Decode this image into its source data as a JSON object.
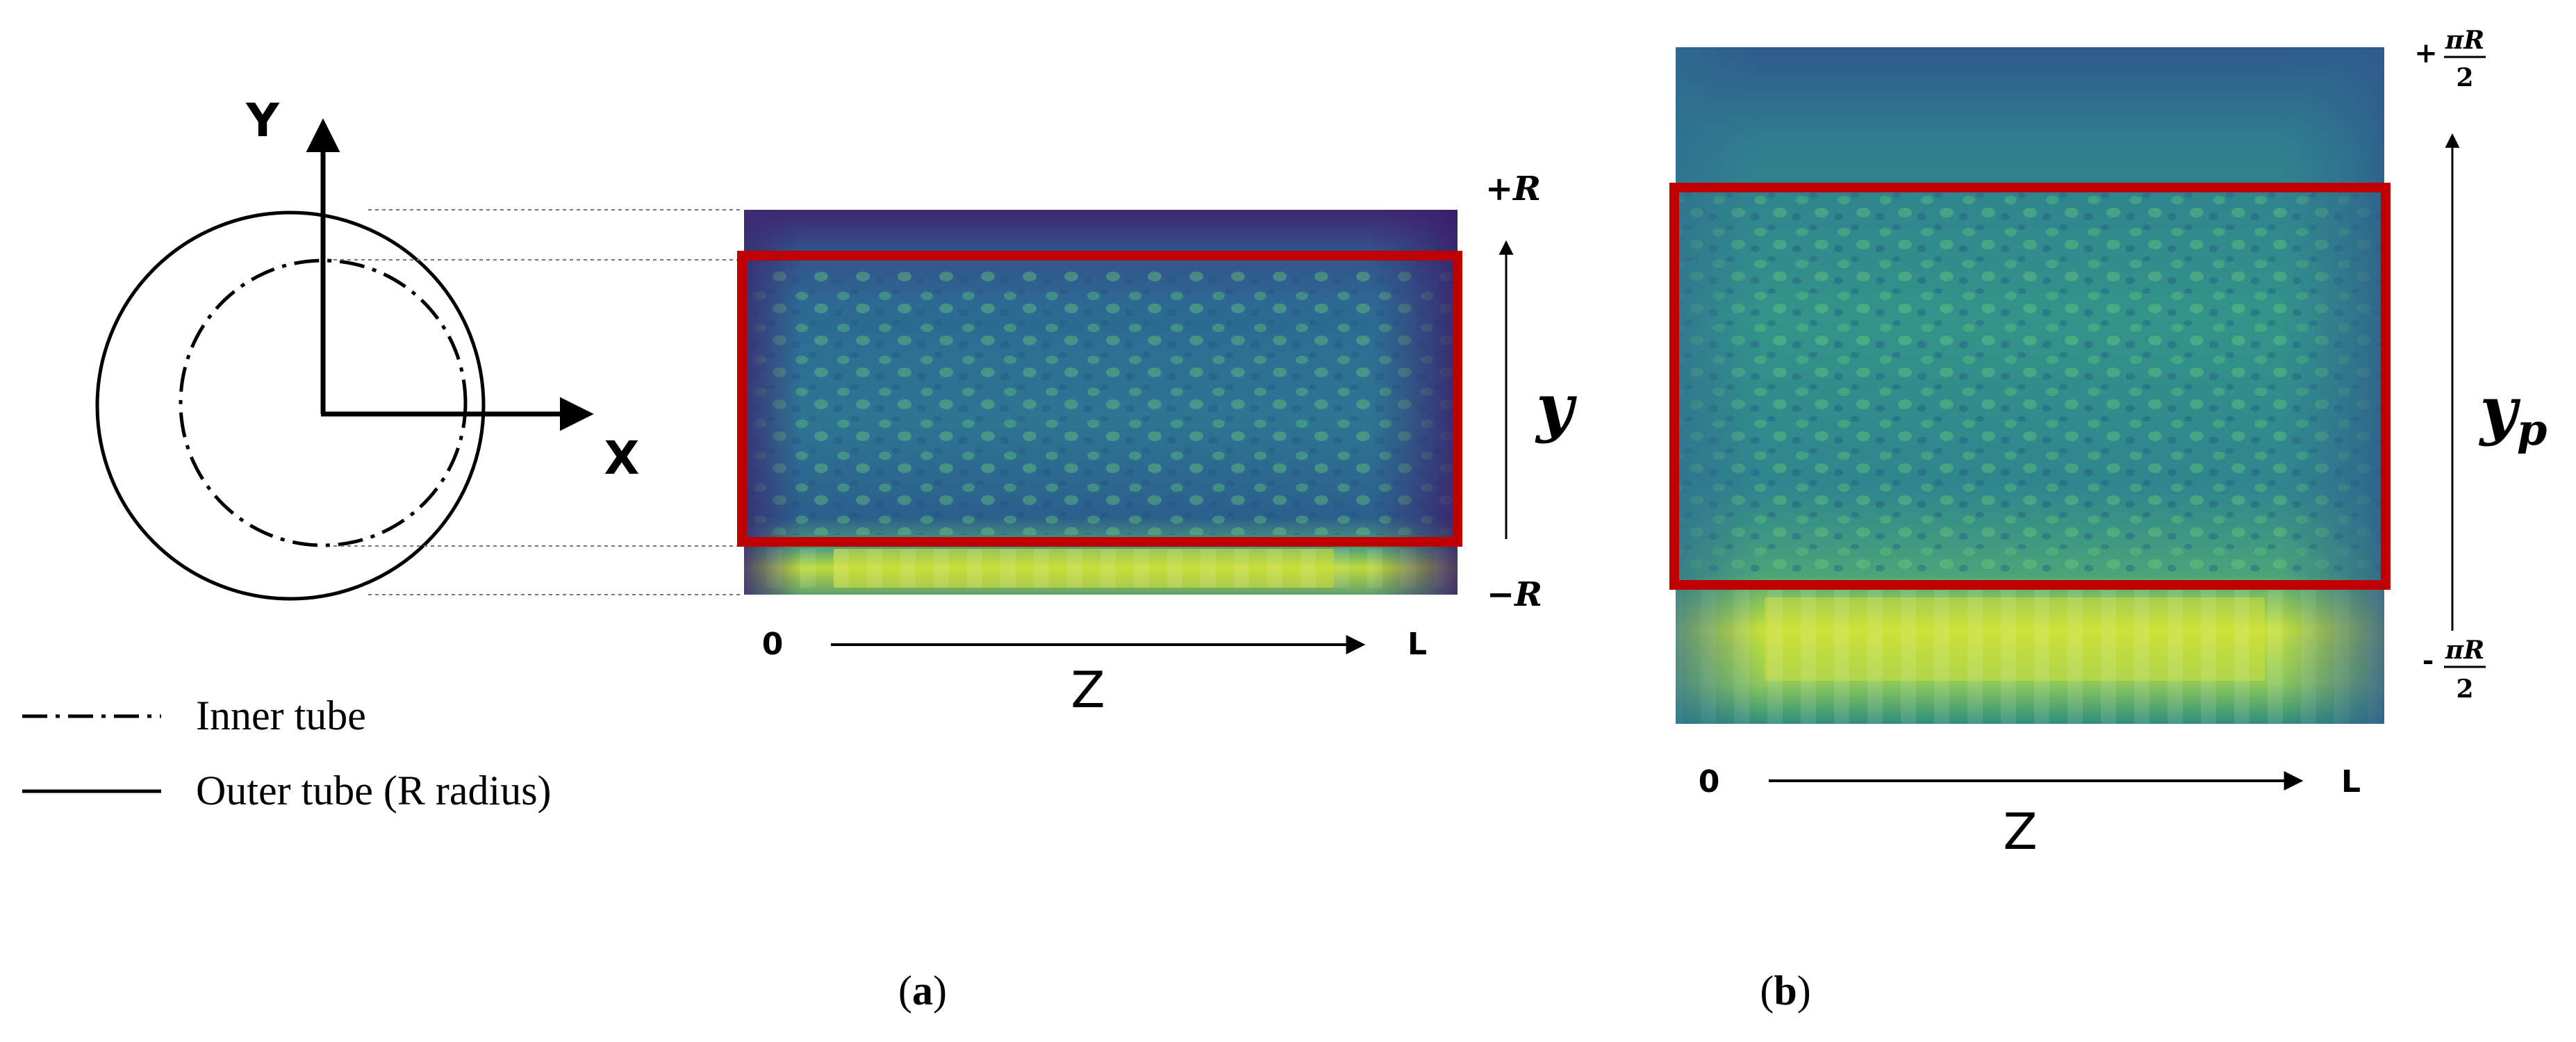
{
  "cross_section": {
    "y_axis_label": "Y",
    "x_axis_label": "X"
  },
  "legend": {
    "inner_label": "Inner tube",
    "outer_label": "Outer tube (R radius)"
  },
  "panel_a": {
    "top_label": "+R",
    "bottom_label": "−R",
    "side_label": "y",
    "axis_start": "0",
    "axis_end": "L",
    "axis_label": "Z",
    "caption_open": "(",
    "caption_letter": "a",
    "caption_close": ")"
  },
  "panel_b": {
    "top_prefix": "+",
    "top_num": "πR",
    "top_den": "2",
    "bottom_prefix": "-",
    "bottom_num": "πR",
    "bottom_den": "2",
    "side_label_base": "y",
    "side_label_sub": "p",
    "axis_start": "0",
    "axis_end": "L",
    "axis_label": "Z",
    "caption_open": "(",
    "caption_letter": "b",
    "caption_close": ")"
  },
  "colors": {
    "highlight_box": "#c00000",
    "heat_dark": "#3a1b66",
    "heat_mid": "#2f6f95",
    "heat_green": "#35a27a",
    "heat_yellow": "#d8e42c"
  }
}
